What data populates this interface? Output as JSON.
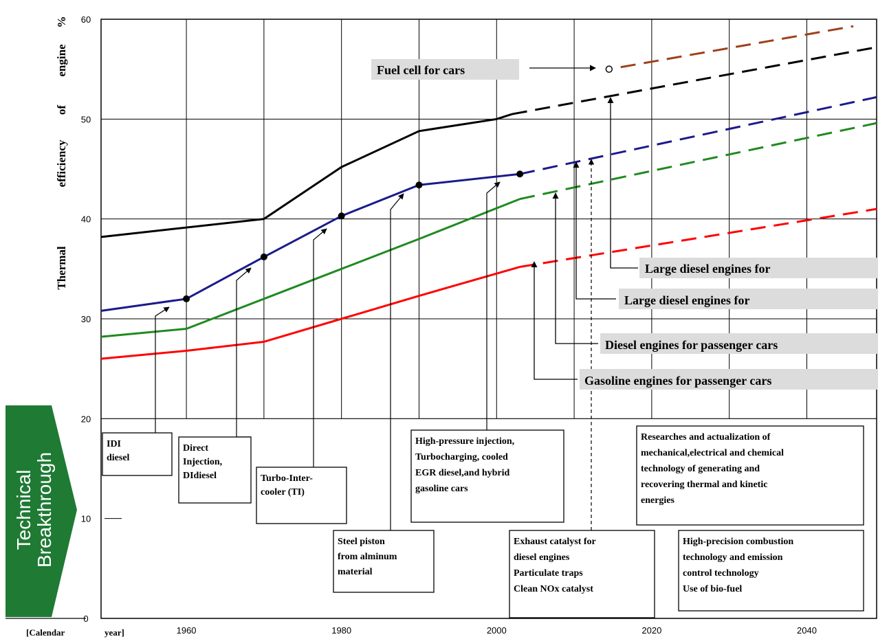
{
  "chart_data": {
    "type": "line",
    "xlabel": "[Calendar year]",
    "xlabel_parts": [
      "[Calendar",
      "year]"
    ],
    "ylabel": "Thermal efficiency of engine %",
    "ylabel_words": [
      "Thermal",
      "efficiency",
      "of",
      "engine",
      "%"
    ],
    "xlim": [
      1949,
      2049
    ],
    "ylim": [
      0,
      60
    ],
    "xticks": [
      1960,
      1980,
      2000,
      2020,
      2040
    ],
    "yticks": [
      0,
      10,
      20,
      30,
      40,
      50,
      60
    ],
    "grid_x": [
      1960,
      1970,
      1980,
      1990,
      2000,
      2010,
      2020,
      2030,
      2040
    ],
    "grid_y": [
      30,
      40,
      50
    ],
    "series": [
      {
        "name": "Large diesel engines for",
        "color": "#000000",
        "solid": [
          [
            1949,
            38.2
          ],
          [
            1970,
            40.0
          ],
          [
            1980,
            45.2
          ],
          [
            1990,
            48.8
          ],
          [
            2000,
            50.0
          ],
          [
            2002,
            50.5
          ]
        ],
        "dashed": [
          [
            2002,
            50.5
          ],
          [
            2049,
            57.2
          ]
        ]
      },
      {
        "name": "Large diesel engines for",
        "color": "#1a1a8c",
        "solid": [
          [
            1949,
            30.8
          ],
          [
            1960,
            32.0
          ],
          [
            1970,
            36.2
          ],
          [
            1980,
            40.3
          ],
          [
            1990,
            43.4
          ],
          [
            2003,
            44.5
          ]
        ],
        "dashed": [
          [
            2003,
            44.5
          ],
          [
            2049,
            52.2
          ]
        ],
        "points": [
          [
            1960,
            32.0
          ],
          [
            1970,
            36.2
          ],
          [
            1980,
            40.3
          ],
          [
            1990,
            43.4
          ],
          [
            2003,
            44.5
          ]
        ]
      },
      {
        "name": "Diesel engines for passenger cars",
        "color": "#1f8a1f",
        "solid": [
          [
            1949,
            28.2
          ],
          [
            1960,
            29.0
          ],
          [
            1970,
            32.0
          ],
          [
            1980,
            35.0
          ],
          [
            1990,
            38.0
          ],
          [
            2003,
            42.0
          ]
        ],
        "dashed": [
          [
            2003,
            42.0
          ],
          [
            2049,
            49.6
          ]
        ]
      },
      {
        "name": "Gasoline engines for passenger cars",
        "color": "#ff0000",
        "solid": [
          [
            1949,
            26.0
          ],
          [
            1960,
            26.8
          ],
          [
            1970,
            27.7
          ],
          [
            1980,
            30.0
          ],
          [
            1990,
            32.3
          ],
          [
            2003,
            35.2
          ]
        ],
        "dashed": [
          [
            2003,
            35.2
          ],
          [
            2049,
            41.0
          ]
        ]
      },
      {
        "name": "Fuel cell for cars",
        "color": "#a0401a",
        "solid": [],
        "dashed": [
          [
            2016,
            55.2
          ],
          [
            2046,
            59.3
          ]
        ],
        "open_point": [
          2014.5,
          55.0
        ]
      }
    ],
    "legend_labels": [
      "Fuel cell for cars",
      "Large diesel engines for",
      "Large diesel engines for",
      "Diesel engines for passenger cars",
      "Gasoline engines for passenger cars"
    ],
    "sidebar_label_lines": [
      "Technical",
      "Breakthrough"
    ],
    "breakthrough_notes": [
      {
        "id": "idi",
        "lines": [
          "IDI",
          "diesel"
        ]
      },
      {
        "id": "di",
        "lines": [
          "Direct",
          "Injection,",
          "DIdiesel"
        ]
      },
      {
        "id": "tt",
        "lines": [
          "Turbo-Inter-",
          "cooler (TI)"
        ]
      },
      {
        "id": "steel",
        "lines": [
          "Steel piston",
          "from alminum",
          "material"
        ]
      },
      {
        "id": "hp",
        "lines": [
          "High-pressure injection,",
          "Turbocharging, cooled",
          "EGR diesel,and hybrid",
          "gasoline cars"
        ]
      },
      {
        "id": "catalyst",
        "lines": [
          "Exhaust catalyst for",
          "diesel engines",
          "Particulate traps",
          "Clean NOx catalyst"
        ]
      },
      {
        "id": "research",
        "lines": [
          "Researches and actualization of",
          "mechanical,electrical and chemical",
          "technology of  generating and",
          "recovering thermal and kinetic",
          "energies"
        ]
      },
      {
        "id": "precision",
        "lines": [
          "High-precision combustion",
          "technology and emission",
          "control technology",
          "Use of bio-fuel"
        ]
      }
    ]
  }
}
